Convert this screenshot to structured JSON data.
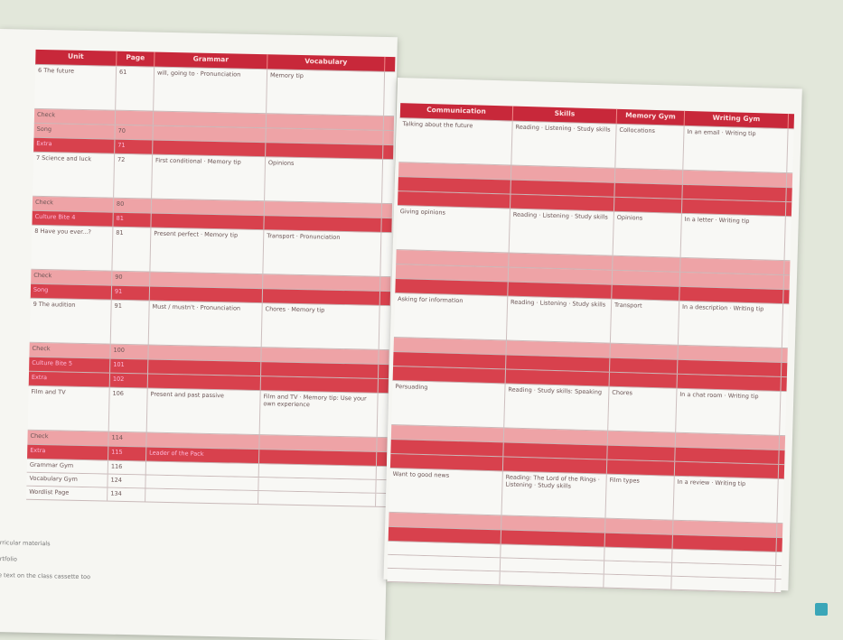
{
  "left_page": {
    "header": [
      "Unit",
      "Page",
      "Grammar",
      "Vocabulary"
    ],
    "rows": [
      {
        "unit": "6 The future",
        "page": "61",
        "grammar": "will, going to · Pronunciation",
        "vocabulary": "Memory tip"
      },
      {
        "unit": "Check"
      },
      {
        "unit": "Song",
        "page": "70"
      },
      {
        "unit": "Extra",
        "page": "71"
      },
      {
        "unit": "7 Science and luck",
        "page": "72",
        "grammar": "First conditional · Memory tip",
        "vocabulary": "Opinions"
      },
      {
        "unit": "Check",
        "page": "80"
      },
      {
        "unit": "Culture Bite 4",
        "page": "81"
      },
      {
        "unit": "8 Have you ever...?",
        "page": "81",
        "grammar": "Present perfect · Memory tip",
        "vocabulary": "Transport · Pronunciation"
      },
      {
        "unit": "Check",
        "page": "90"
      },
      {
        "unit": "Song",
        "page": "91"
      },
      {
        "unit": "9 The audition",
        "page": "91",
        "grammar": "Must / mustn't · Pronunciation",
        "vocabulary": "Chores · Memory tip"
      },
      {
        "unit": "Check",
        "page": "100"
      },
      {
        "unit": "Culture Bite 5",
        "page": "101"
      },
      {
        "unit": "Extra",
        "page": "102"
      },
      {
        "unit": "Film and TV",
        "page": "106",
        "grammar": "Present and past passive",
        "vocabulary": "Film and TV · Memory tip: Use your own experience"
      },
      {
        "unit": "Check",
        "page": "114"
      },
      {
        "unit": "Extra",
        "page": "115",
        "grammar": "Leader of the Pack"
      },
      {
        "unit": "Grammar Gym",
        "page": "116"
      },
      {
        "unit": "Vocabulary Gym",
        "page": "124"
      },
      {
        "unit": "Wordlist Page",
        "page": "134"
      }
    ]
  },
  "right_page": {
    "header": [
      "Communication",
      "Skills",
      "Memory Gym",
      "Writing Gym"
    ],
    "rows": [
      {
        "communication": "Talking about the future",
        "skills": "Reading · Listening · Study skills",
        "memory_gym": "Collocations",
        "writing_gym": "In an email · Writing tip"
      },
      {
        "communication": "Giving opinions",
        "skills": "Reading · Listening · Study skills",
        "memory_gym": "Opinions",
        "writing_gym": "In a letter · Writing tip"
      },
      {
        "communication": "Asking for information",
        "skills": "Reading · Listening · Study skills",
        "memory_gym": "Transport",
        "writing_gym": "In a description · Writing tip"
      },
      {
        "communication": "Persuading",
        "skills": "Reading · Study skills: Speaking",
        "memory_gym": "Chores",
        "writing_gym": "In a chat room · Writing tip"
      },
      {
        "communication": "Want to good news",
        "skills": "Reading: The Lord of the Rings · Listening · Study skills",
        "memory_gym": "Film types",
        "writing_gym": "In a review · Writing tip"
      }
    ]
  },
  "footnotes": [
    "curricular materials",
    "portfolio",
    "the text on the class cassette too"
  ]
}
